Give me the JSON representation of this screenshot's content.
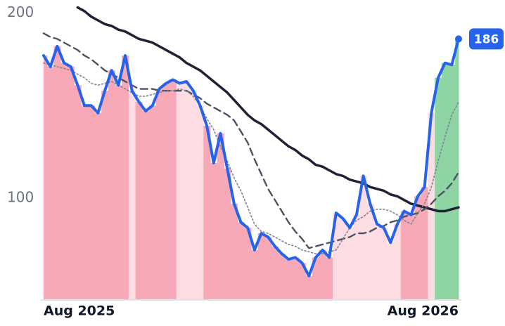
{
  "chart_data": {
    "type": "line",
    "categories": [
      "Aug 2025",
      null,
      null,
      null,
      null,
      null,
      null,
      null,
      null,
      null,
      null,
      null,
      null,
      null,
      null,
      null,
      null,
      null,
      null,
      null,
      null,
      null,
      null,
      null,
      null,
      null,
      null,
      null,
      null,
      null,
      null,
      null,
      null,
      null,
      null,
      null,
      null,
      null,
      null,
      null,
      null,
      null,
      null,
      null,
      null,
      null,
      null,
      null,
      null,
      null,
      null,
      null,
      null,
      null,
      null,
      null,
      null,
      "Aug 2026",
      null,
      null,
      null,
      null
    ],
    "ylim": [
      45,
      207
    ],
    "yticks": [
      100,
      200
    ],
    "grid": false,
    "series": [
      {
        "color": "#2563eb",
        "style": "solid",
        "width": 4,
        "area": true,
        "end_label": true,
        "values": [
          177,
          171,
          182,
          173,
          171,
          161,
          150,
          150,
          146,
          158,
          169,
          161,
          177,
          158,
          152,
          147,
          150,
          159,
          162,
          164,
          162,
          163,
          158,
          150,
          139,
          119,
          135,
          116,
          97,
          87,
          84,
          72,
          81,
          79,
          74,
          70,
          67,
          68,
          65,
          58,
          68,
          72,
          68,
          92,
          89,
          84,
          91,
          112,
          97,
          86,
          84,
          76,
          86,
          93,
          91,
          101,
          106,
          146,
          165,
          173,
          172,
          186
        ],
        "area_colors": [
          "#f8a9b7",
          "#f8a9b7",
          "#f8a9b7",
          "#f8a9b7",
          "#f8a9b7",
          "#f8a9b7",
          "#f8a9b7",
          "#f8a9b7",
          "#f8a9b7",
          "#f8a9b7",
          "#f8a9b7",
          "#f8a9b7",
          "#f8a9b7",
          "#fddce2",
          "#f8a9b7",
          "#f8a9b7",
          "#f8a9b7",
          "#f8a9b7",
          "#f8a9b7",
          "#f8a9b7",
          "#fddce2",
          "#fddce2",
          "#fddce2",
          "#fddce2",
          "#f8a9b7",
          "#f8a9b7",
          "#f8a9b7",
          "#f8a9b7",
          "#f8a9b7",
          "#f8a9b7",
          "#f8a9b7",
          "#f8a9b7",
          "#f8a9b7",
          "#f8a9b7",
          "#f8a9b7",
          "#f8a9b7",
          "#f8a9b7",
          "#f8a9b7",
          "#f8a9b7",
          "#f8a9b7",
          "#f8a9b7",
          "#f8a9b7",
          "#f8a9b7",
          "#fddce2",
          "#fddce2",
          "#fddce2",
          "#fddce2",
          "#fddce2",
          "#fddce2",
          "#fddce2",
          "#fddce2",
          "#fddce2",
          "#fddce2",
          "#f8a9b7",
          "#f8a9b7",
          "#f8a9b7",
          "#f8a9b7",
          "#fddce2",
          "#8fd4a3",
          "#8fd4a3",
          "#8fd4a3",
          "#8fd4a3"
        ]
      },
      {
        "color": "#7c8494",
        "style": "dotted",
        "width": 1.6,
        "values": [
          173,
          172,
          171,
          170,
          169,
          167,
          165,
          162,
          161,
          162,
          163,
          161,
          159,
          157,
          155,
          155,
          156,
          157,
          158,
          158,
          159,
          158,
          155,
          150,
          143,
          137,
          128,
          120,
          111,
          104,
          95,
          86,
          82,
          81,
          79,
          77,
          75,
          74,
          72,
          71,
          70,
          70,
          71,
          72,
          78,
          84,
          88,
          90,
          93,
          94,
          94,
          93,
          91,
          88,
          86,
          92,
          97,
          106,
          120,
          133,
          145,
          152
        ]
      },
      {
        "color": "#4b5263",
        "style": "dashed",
        "width": 2.4,
        "values": [
          189,
          187,
          186,
          184,
          182,
          180,
          177,
          175,
          172,
          169,
          167,
          165,
          163,
          161,
          159,
          159,
          159,
          158,
          158,
          158,
          158,
          158,
          156,
          154,
          151,
          149,
          147,
          145,
          142,
          136,
          130,
          121,
          113,
          105,
          99,
          93,
          87,
          82,
          78,
          73,
          74,
          75,
          76,
          77,
          78,
          79,
          81,
          81,
          82,
          84,
          85,
          87,
          88,
          90,
          91,
          92,
          94,
          97,
          101,
          104,
          108,
          114
        ]
      },
      {
        "color": "#1e2235",
        "style": "solid",
        "width": 3.5,
        "values": [
          null,
          null,
          null,
          null,
          null,
          203,
          201,
          198,
          196,
          194,
          193,
          191,
          190,
          188,
          186,
          185,
          184,
          182,
          180,
          178,
          176,
          173,
          171,
          169,
          166,
          163,
          160,
          157,
          153,
          149,
          145,
          142,
          140,
          137,
          134,
          131,
          128,
          126,
          123,
          121,
          118,
          117,
          115,
          113,
          112,
          110,
          109,
          108,
          106,
          105,
          104,
          102,
          101,
          99,
          97,
          96,
          95,
          94,
          93,
          93,
          94,
          95
        ]
      }
    ]
  }
}
